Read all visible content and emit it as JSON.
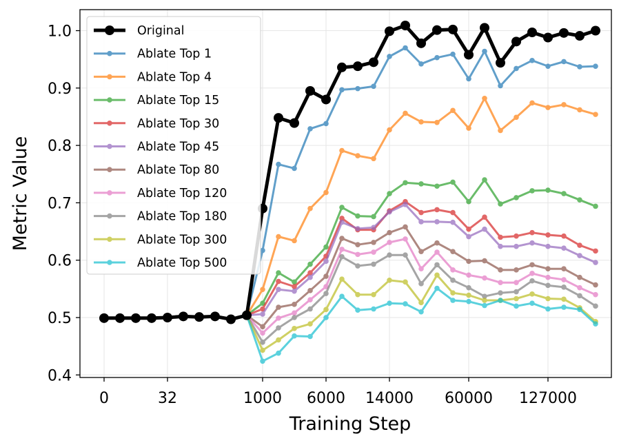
{
  "chart_data": {
    "type": "line",
    "title": "",
    "xlabel": "Training Step",
    "ylabel": "Metric Value",
    "ylim": [
      0.4,
      1.0
    ],
    "yticks": [
      "0.4",
      "0.5",
      "0.6",
      "0.7",
      "0.8",
      "0.9",
      "1.0"
    ],
    "x_tick_labels": [
      "0",
      "32",
      "1000",
      "6000",
      "14000",
      "60000",
      "127000"
    ],
    "x_tick_indices": [
      0,
      4,
      10,
      14,
      18,
      23,
      28
    ],
    "grid": true,
    "legend_position": "upper left",
    "series": [
      {
        "name": "Original",
        "color": "#000000",
        "values": [
          0.499,
          0.499,
          0.499,
          0.499,
          0.5,
          0.502,
          0.501,
          0.502,
          0.497,
          0.504,
          0.69,
          0.848,
          0.839,
          0.895,
          0.88,
          0.936,
          0.938,
          0.945,
          0.999,
          1.009,
          0.978,
          1.001,
          1.002,
          0.958,
          1.005,
          0.944,
          0.981,
          0.997,
          0.988,
          0.996,
          0.991,
          1.0
        ]
      },
      {
        "name": "Ablate Top 1",
        "color": "#1f77b4",
        "values": [
          0.499,
          0.499,
          0.499,
          0.499,
          0.5,
          0.502,
          0.501,
          0.502,
          0.497,
          0.504,
          0.617,
          0.767,
          0.76,
          0.829,
          0.838,
          0.897,
          0.899,
          0.903,
          0.955,
          0.97,
          0.942,
          0.953,
          0.959,
          0.916,
          0.964,
          0.904,
          0.934,
          0.948,
          0.938,
          0.946,
          0.937,
          0.938
        ]
      },
      {
        "name": "Ablate Top 4",
        "color": "#ff7f0e",
        "values": [
          0.499,
          0.499,
          0.499,
          0.499,
          0.5,
          0.502,
          0.501,
          0.502,
          0.497,
          0.504,
          0.549,
          0.641,
          0.634,
          0.69,
          0.718,
          0.791,
          0.782,
          0.777,
          0.827,
          0.856,
          0.841,
          0.84,
          0.861,
          0.83,
          0.882,
          0.826,
          0.849,
          0.874,
          0.866,
          0.871,
          0.862,
          0.854
        ]
      },
      {
        "name": "Ablate Top 15",
        "color": "#2ca02c",
        "values": [
          0.499,
          0.499,
          0.499,
          0.499,
          0.5,
          0.502,
          0.501,
          0.502,
          0.497,
          0.504,
          0.525,
          0.578,
          0.562,
          0.593,
          0.623,
          0.692,
          0.677,
          0.676,
          0.716,
          0.735,
          0.733,
          0.729,
          0.736,
          0.702,
          0.74,
          0.698,
          0.709,
          0.721,
          0.722,
          0.716,
          0.705,
          0.694
        ]
      },
      {
        "name": "Ablate Top 30",
        "color": "#d62728",
        "values": [
          0.499,
          0.499,
          0.499,
          0.499,
          0.5,
          0.502,
          0.501,
          0.502,
          0.497,
          0.504,
          0.515,
          0.563,
          0.554,
          0.578,
          0.607,
          0.673,
          0.653,
          0.653,
          0.686,
          0.702,
          0.683,
          0.688,
          0.683,
          0.654,
          0.675,
          0.64,
          0.642,
          0.648,
          0.644,
          0.642,
          0.626,
          0.616
        ]
      },
      {
        "name": "Ablate Top 45",
        "color": "#9467bd",
        "values": [
          0.499,
          0.499,
          0.499,
          0.499,
          0.5,
          0.502,
          0.501,
          0.502,
          0.497,
          0.504,
          0.506,
          0.549,
          0.546,
          0.57,
          0.598,
          0.666,
          0.655,
          0.657,
          0.684,
          0.697,
          0.667,
          0.667,
          0.666,
          0.641,
          0.654,
          0.624,
          0.624,
          0.63,
          0.624,
          0.621,
          0.608,
          0.596
        ]
      },
      {
        "name": "Ablate Top 80",
        "color": "#8c564b",
        "values": [
          0.499,
          0.499,
          0.499,
          0.499,
          0.5,
          0.502,
          0.501,
          0.502,
          0.497,
          0.504,
          0.484,
          0.518,
          0.523,
          0.547,
          0.572,
          0.638,
          0.627,
          0.631,
          0.648,
          0.658,
          0.615,
          0.63,
          0.615,
          0.598,
          0.599,
          0.583,
          0.583,
          0.592,
          0.585,
          0.585,
          0.57,
          0.557
        ]
      },
      {
        "name": "Ablate Top 120",
        "color": "#e377c2",
        "values": [
          0.499,
          0.499,
          0.499,
          0.499,
          0.5,
          0.502,
          0.501,
          0.502,
          0.497,
          0.504,
          0.473,
          0.499,
          0.508,
          0.531,
          0.554,
          0.619,
          0.61,
          0.614,
          0.631,
          0.637,
          0.585,
          0.614,
          0.583,
          0.574,
          0.569,
          0.561,
          0.561,
          0.577,
          0.57,
          0.566,
          0.552,
          0.54
        ]
      },
      {
        "name": "Ablate Top 180",
        "color": "#7f7f7f",
        "values": [
          0.499,
          0.499,
          0.499,
          0.499,
          0.5,
          0.502,
          0.501,
          0.502,
          0.497,
          0.504,
          0.457,
          0.482,
          0.5,
          0.515,
          0.542,
          0.606,
          0.59,
          0.593,
          0.609,
          0.609,
          0.559,
          0.592,
          0.565,
          0.552,
          0.537,
          0.543,
          0.545,
          0.564,
          0.556,
          0.553,
          0.538,
          0.52
        ]
      },
      {
        "name": "Ablate Top 300",
        "color": "#bcbd22",
        "values": [
          0.499,
          0.499,
          0.499,
          0.499,
          0.5,
          0.502,
          0.501,
          0.502,
          0.497,
          0.504,
          0.443,
          0.461,
          0.481,
          0.489,
          0.514,
          0.567,
          0.54,
          0.54,
          0.565,
          0.562,
          0.526,
          0.574,
          0.543,
          0.539,
          0.53,
          0.53,
          0.533,
          0.541,
          0.533,
          0.532,
          0.517,
          0.493
        ]
      },
      {
        "name": "Ablate Top 500",
        "color": "#17becf",
        "values": [
          0.499,
          0.499,
          0.499,
          0.499,
          0.5,
          0.502,
          0.501,
          0.502,
          0.497,
          0.504,
          0.424,
          0.438,
          0.468,
          0.467,
          0.5,
          0.537,
          0.513,
          0.515,
          0.525,
          0.524,
          0.51,
          0.551,
          0.53,
          0.528,
          0.521,
          0.53,
          0.52,
          0.525,
          0.515,
          0.518,
          0.514,
          0.489
        ]
      }
    ]
  }
}
